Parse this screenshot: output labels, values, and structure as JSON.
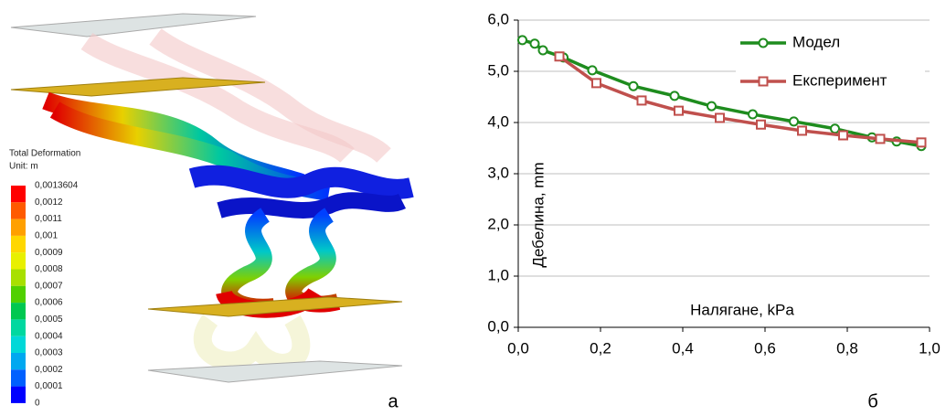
{
  "figure_a": {
    "title": "Total Deformation",
    "unit": "Unit: m",
    "legend_labels": [
      "0,0013604",
      "0,0012",
      "0,0011",
      "0,001",
      "0,0009",
      "0,0008",
      "0,0007",
      "0,0006",
      "0,0005",
      "0,0004",
      "0,0003",
      "0,0002",
      "0,0001",
      "0"
    ],
    "legend_colors": [
      "#ff0000",
      "#ff5a00",
      "#ffa000",
      "#ffd700",
      "#e8f000",
      "#a8e000",
      "#50d000",
      "#00c850",
      "#00d8a0",
      "#00d8d8",
      "#00a8f0",
      "#0060ff",
      "#0000ff"
    ],
    "panel_label": "а"
  },
  "chart_data": {
    "type": "line",
    "panel_label": "б",
    "x_label": "Налягане, kPa",
    "y_label": "Дебелина, mm",
    "xlim": [
      0,
      1
    ],
    "ylim": [
      0,
      6
    ],
    "xticks": [
      {
        "value": 0,
        "label": "0,0"
      },
      {
        "value": 0.2,
        "label": "0,2"
      },
      {
        "value": 0.4,
        "label": "0,4"
      },
      {
        "value": 0.6,
        "label": "0,6"
      },
      {
        "value": 0.8,
        "label": "0,8"
      },
      {
        "value": 1,
        "label": "1,0"
      }
    ],
    "yticks": [
      {
        "value": 0,
        "label": "0,0"
      },
      {
        "value": 1,
        "label": "1,0"
      },
      {
        "value": 2,
        "label": "2,0"
      },
      {
        "value": 3,
        "label": "3,0"
      },
      {
        "value": 4,
        "label": "4,0"
      },
      {
        "value": 5,
        "label": "5,0"
      },
      {
        "value": 6,
        "label": "6,0"
      }
    ],
    "grid": true,
    "legend_position": "upper-right",
    "series": [
      {
        "name": "Модел",
        "color": "#1e8c1e",
        "marker": "circle",
        "x": [
          0.01,
          0.04,
          0.06,
          0.11,
          0.18,
          0.28,
          0.38,
          0.47,
          0.57,
          0.67,
          0.77,
          0.86,
          0.92,
          0.98
        ],
        "values": [
          5.61,
          5.54,
          5.41,
          5.27,
          5.02,
          4.71,
          4.52,
          4.32,
          4.16,
          4.02,
          3.88,
          3.71,
          3.63,
          3.54
        ]
      },
      {
        "name": "Експеримент",
        "color": "#c0504d",
        "marker": "square",
        "x": [
          0.1,
          0.19,
          0.3,
          0.39,
          0.49,
          0.59,
          0.69,
          0.79,
          0.88,
          0.98
        ],
        "values": [
          5.29,
          4.77,
          4.43,
          4.23,
          4.09,
          3.96,
          3.84,
          3.75,
          3.68,
          3.61
        ]
      }
    ]
  }
}
